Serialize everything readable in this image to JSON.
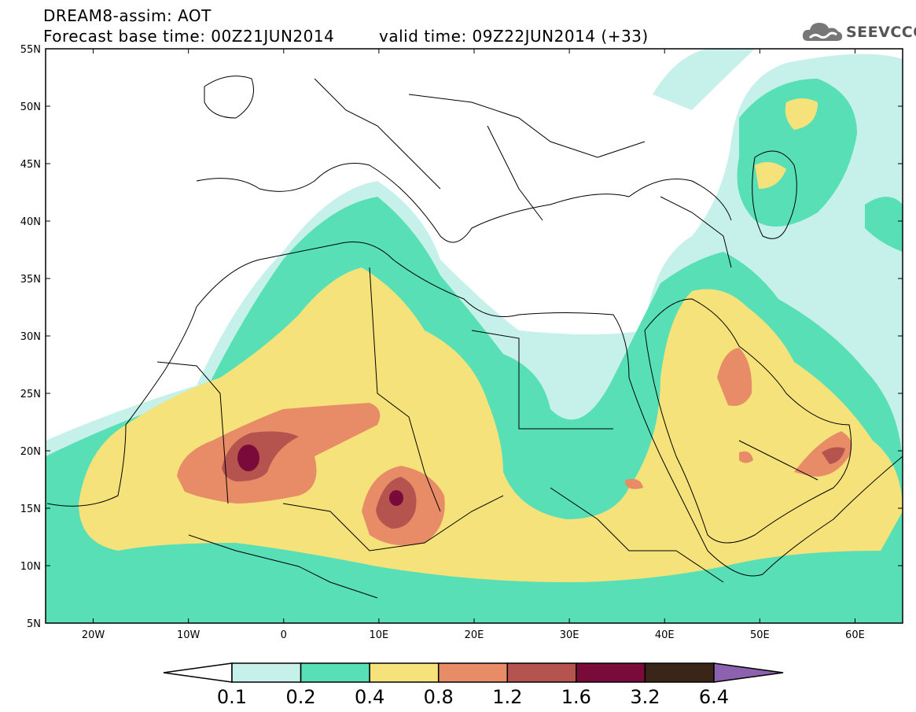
{
  "header": {
    "title_line1": "DREAM8-assim: AOT",
    "title_line2": "Forecast base time: 00Z21JUN2014",
    "title_line2b": "valid time: 09Z22JUN2014 (+33)",
    "logo_text": "SEEVCCC",
    "logo_icon": "cloud-icon"
  },
  "map": {
    "lat_labels": [
      "55N",
      "50N",
      "45N",
      "40N",
      "35N",
      "30N",
      "25N",
      "20N",
      "15N",
      "10N",
      "5N"
    ],
    "lon_labels": [
      "20W",
      "10W",
      "0",
      "10E",
      "20E",
      "30E",
      "40E",
      "50E",
      "60E"
    ],
    "lon_range": [
      -25,
      65
    ],
    "lat_range": [
      5,
      55
    ]
  },
  "colorbar": {
    "labels": [
      "0.1",
      "0.2",
      "0.4",
      "0.8",
      "1.2",
      "1.6",
      "3.2",
      "6.4"
    ],
    "colors": [
      "#ffffff",
      "#c6f1ea",
      "#59dfb5",
      "#f6e27a",
      "#e88c68",
      "#b5544e",
      "#7a0a3a",
      "#3a2618",
      "#8c62b0"
    ]
  }
}
